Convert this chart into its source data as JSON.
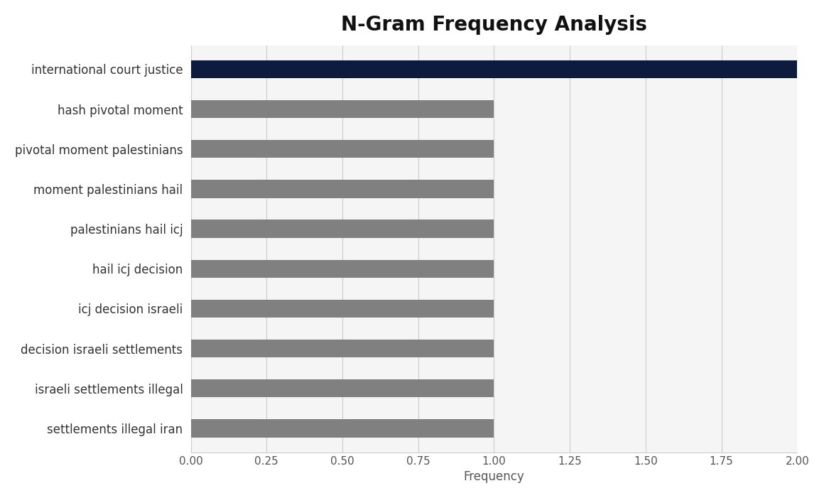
{
  "title": "N-Gram Frequency Analysis",
  "categories": [
    "settlements illegal iran",
    "israeli settlements illegal",
    "decision israeli settlements",
    "icj decision israeli",
    "hail icj decision",
    "palestinians hail icj",
    "moment palestinians hail",
    "pivotal moment palestinians",
    "hash pivotal moment",
    "international court justice"
  ],
  "values": [
    1,
    1,
    1,
    1,
    1,
    1,
    1,
    1,
    1,
    2
  ],
  "bar_colors": [
    "#808080",
    "#808080",
    "#808080",
    "#808080",
    "#808080",
    "#808080",
    "#808080",
    "#808080",
    "#808080",
    "#0d1b3e"
  ],
  "xlabel": "Frequency",
  "xlim": [
    0,
    2.0
  ],
  "xticks": [
    0.0,
    0.25,
    0.5,
    0.75,
    1.0,
    1.25,
    1.5,
    1.75,
    2.0
  ],
  "xtick_labels": [
    "0.00",
    "0.25",
    "0.50",
    "0.75",
    "1.00",
    "1.25",
    "1.50",
    "1.75",
    "2.00"
  ],
  "plot_bg_color": "#f5f5f5",
  "fig_bg_color": "#ffffff",
  "title_fontsize": 20,
  "label_fontsize": 12,
  "tick_fontsize": 11,
  "bar_height": 0.45
}
